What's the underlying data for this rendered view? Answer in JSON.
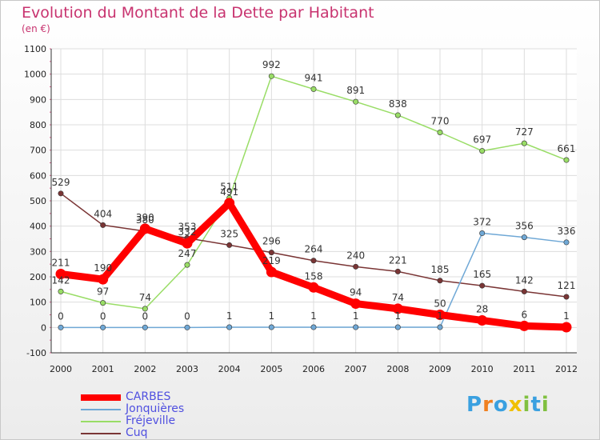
{
  "chart_data": {
    "type": "line",
    "title": "Evolution du Montant de la Dette par Habitant",
    "subtitle": "(en €)",
    "x": [
      "2000",
      "2001",
      "2002",
      "2003",
      "2004",
      "2005",
      "2006",
      "2007",
      "2008",
      "2009",
      "2010",
      "2011",
      "2012"
    ],
    "ylim": [
      -100,
      1100
    ],
    "yticks": [
      -100,
      0,
      100,
      200,
      300,
      400,
      500,
      600,
      700,
      800,
      900,
      1000,
      1100
    ],
    "grid": true,
    "legend_position": "bottom-left",
    "series": [
      {
        "name": "CARBES",
        "color": "#ff0000",
        "values": [
          211,
          190,
          390,
          332,
          491,
          219,
          158,
          94,
          74,
          50,
          28,
          6,
          1
        ]
      },
      {
        "name": "Jonquières",
        "color": "#6fa8d6",
        "values": [
          0,
          0,
          0,
          0,
          1,
          1,
          1,
          1,
          1,
          1,
          372,
          356,
          336
        ]
      },
      {
        "name": "Fréjeville",
        "color": "#99dd66",
        "values": [
          142,
          97,
          74,
          247,
          511,
          992,
          941,
          891,
          838,
          770,
          697,
          727,
          661
        ]
      },
      {
        "name": "Cuq",
        "color": "#7a3535",
        "values": [
          529,
          404,
          380,
          353,
          325,
          296,
          264,
          240,
          221,
          185,
          165,
          142,
          121
        ]
      }
    ]
  },
  "logo": {
    "letters": [
      "P",
      "r",
      "o",
      "x",
      "i",
      "t",
      "i"
    ],
    "colors": [
      "#3aa0e0",
      "#f08020",
      "#3aa0e0",
      "#f0c000",
      "#80c040",
      "#3aa0e0",
      "#80c040"
    ]
  }
}
